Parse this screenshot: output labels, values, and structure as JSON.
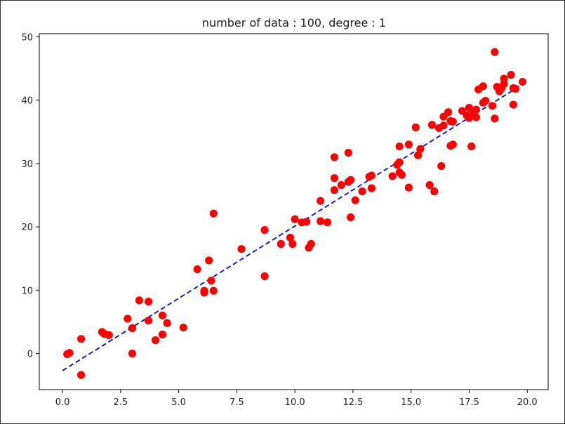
{
  "chart_data": {
    "type": "scatter",
    "title": "number of data : 100, degree : 1",
    "xlabel": "",
    "ylabel": "",
    "xlim": [
      -1.0,
      20.9
    ],
    "ylim": [
      -5.7,
      50.5
    ],
    "xticks": [
      0.0,
      2.5,
      5.0,
      7.5,
      10.0,
      12.5,
      15.0,
      17.5,
      20.0
    ],
    "xtick_labels": [
      "0.0",
      "2.5",
      "5.0",
      "7.5",
      "10.0",
      "12.5",
      "15.0",
      "17.5",
      "20.0"
    ],
    "yticks": [
      0,
      10,
      20,
      30,
      40,
      50
    ],
    "ytick_labels": [
      "0",
      "10",
      "20",
      "30",
      "40",
      "50"
    ],
    "grid": false,
    "colors": {
      "points": "#ff0000",
      "fit_line": "#0000ff",
      "axes": "#000000"
    },
    "points": [
      {
        "x": 0.2,
        "y": -0.1
      },
      {
        "x": 0.3,
        "y": 0.1
      },
      {
        "x": 0.8,
        "y": 2.3
      },
      {
        "x": 0.8,
        "y": -3.4
      },
      {
        "x": 1.7,
        "y": 3.4
      },
      {
        "x": 1.8,
        "y": 3.1
      },
      {
        "x": 2.0,
        "y": 2.9
      },
      {
        "x": 2.8,
        "y": 5.5
      },
      {
        "x": 3.0,
        "y": 4.0
      },
      {
        "x": 3.0,
        "y": 0.0
      },
      {
        "x": 3.3,
        "y": 8.4
      },
      {
        "x": 3.7,
        "y": 8.2
      },
      {
        "x": 3.7,
        "y": 5.2
      },
      {
        "x": 4.0,
        "y": 2.1
      },
      {
        "x": 4.3,
        "y": 6.0
      },
      {
        "x": 4.3,
        "y": 3.0
      },
      {
        "x": 4.5,
        "y": 4.8
      },
      {
        "x": 5.2,
        "y": 4.1
      },
      {
        "x": 5.8,
        "y": 13.3
      },
      {
        "x": 6.1,
        "y": 9.9
      },
      {
        "x": 6.1,
        "y": 9.6
      },
      {
        "x": 6.3,
        "y": 14.7
      },
      {
        "x": 6.4,
        "y": 11.5
      },
      {
        "x": 6.5,
        "y": 9.9
      },
      {
        "x": 6.5,
        "y": 22.1
      },
      {
        "x": 7.7,
        "y": 16.5
      },
      {
        "x": 8.7,
        "y": 19.5
      },
      {
        "x": 8.7,
        "y": 12.2
      },
      {
        "x": 9.4,
        "y": 17.3
      },
      {
        "x": 9.8,
        "y": 18.3
      },
      {
        "x": 9.9,
        "y": 17.3
      },
      {
        "x": 10.0,
        "y": 21.2
      },
      {
        "x": 10.3,
        "y": 20.7
      },
      {
        "x": 10.5,
        "y": 20.8
      },
      {
        "x": 10.6,
        "y": 16.7
      },
      {
        "x": 10.7,
        "y": 17.3
      },
      {
        "x": 11.1,
        "y": 24.1
      },
      {
        "x": 11.1,
        "y": 20.9
      },
      {
        "x": 11.4,
        "y": 20.7
      },
      {
        "x": 11.7,
        "y": 31.0
      },
      {
        "x": 11.7,
        "y": 27.7
      },
      {
        "x": 11.7,
        "y": 25.8
      },
      {
        "x": 12.0,
        "y": 26.6
      },
      {
        "x": 12.3,
        "y": 31.7
      },
      {
        "x": 12.3,
        "y": 27.1
      },
      {
        "x": 12.4,
        "y": 27.4
      },
      {
        "x": 12.4,
        "y": 21.5
      },
      {
        "x": 12.6,
        "y": 24.2
      },
      {
        "x": 12.9,
        "y": 25.6
      },
      {
        "x": 13.2,
        "y": 27.9
      },
      {
        "x": 13.3,
        "y": 28.1
      },
      {
        "x": 13.3,
        "y": 26.1
      },
      {
        "x": 14.2,
        "y": 28.0
      },
      {
        "x": 14.4,
        "y": 29.8
      },
      {
        "x": 14.5,
        "y": 32.7
      },
      {
        "x": 14.5,
        "y": 30.2
      },
      {
        "x": 14.5,
        "y": 28.6
      },
      {
        "x": 14.6,
        "y": 28.2
      },
      {
        "x": 14.9,
        "y": 33.0
      },
      {
        "x": 14.9,
        "y": 26.2
      },
      {
        "x": 15.2,
        "y": 35.7
      },
      {
        "x": 15.3,
        "y": 31.3
      },
      {
        "x": 15.4,
        "y": 32.3
      },
      {
        "x": 15.8,
        "y": 26.6
      },
      {
        "x": 15.9,
        "y": 36.1
      },
      {
        "x": 16.0,
        "y": 25.6
      },
      {
        "x": 16.2,
        "y": 35.6
      },
      {
        "x": 16.3,
        "y": 29.6
      },
      {
        "x": 16.4,
        "y": 37.4
      },
      {
        "x": 16.4,
        "y": 36.0
      },
      {
        "x": 16.6,
        "y": 38.1
      },
      {
        "x": 16.7,
        "y": 36.7
      },
      {
        "x": 16.7,
        "y": 32.8
      },
      {
        "x": 16.8,
        "y": 33.0
      },
      {
        "x": 16.8,
        "y": 36.6
      },
      {
        "x": 17.2,
        "y": 38.3
      },
      {
        "x": 17.4,
        "y": 37.6
      },
      {
        "x": 17.5,
        "y": 38.8
      },
      {
        "x": 17.5,
        "y": 37.2
      },
      {
        "x": 17.6,
        "y": 32.7
      },
      {
        "x": 17.7,
        "y": 38.2
      },
      {
        "x": 17.8,
        "y": 37.3
      },
      {
        "x": 17.8,
        "y": 38.5
      },
      {
        "x": 17.9,
        "y": 41.7
      },
      {
        "x": 18.1,
        "y": 42.2
      },
      {
        "x": 18.1,
        "y": 39.6
      },
      {
        "x": 18.2,
        "y": 39.9
      },
      {
        "x": 18.5,
        "y": 39.1
      },
      {
        "x": 18.6,
        "y": 47.6
      },
      {
        "x": 18.6,
        "y": 37.1
      },
      {
        "x": 18.7,
        "y": 42.1
      },
      {
        "x": 18.8,
        "y": 41.4
      },
      {
        "x": 19.0,
        "y": 43.4
      },
      {
        "x": 19.0,
        "y": 42.6
      },
      {
        "x": 19.3,
        "y": 44.0
      },
      {
        "x": 19.4,
        "y": 41.9
      },
      {
        "x": 19.4,
        "y": 39.3
      },
      {
        "x": 19.5,
        "y": 41.8
      },
      {
        "x": 19.8,
        "y": 42.9
      },
      {
        "x": 18.9,
        "y": 41.9
      }
    ],
    "fit_line": {
      "style": "dashed",
      "x": [
        0.0,
        19.8
      ],
      "y": [
        -2.7,
        42.5
      ]
    }
  }
}
